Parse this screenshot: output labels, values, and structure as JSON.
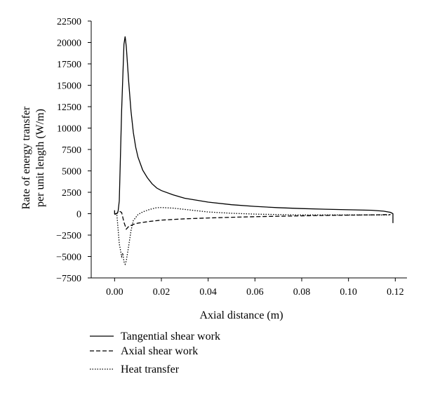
{
  "chart_data": {
    "type": "line",
    "xlabel": "Axial distance (m)",
    "ylabel_lines": [
      "Rate of energy transfer",
      "per unit length (W/m)"
    ],
    "xlim": [
      -0.01,
      0.125
    ],
    "ylim": [
      -7500,
      22500
    ],
    "x_ticks": [
      0.0,
      0.02,
      0.04,
      0.06,
      0.08,
      0.1,
      0.12
    ],
    "x_tick_labels": [
      "0.00",
      "0.02",
      "0.04",
      "0.06",
      "0.08",
      "0.10",
      "0.12"
    ],
    "y_ticks": [
      -7500,
      -5000,
      -2500,
      0,
      2500,
      5000,
      7500,
      10000,
      12500,
      15000,
      17500,
      20000,
      22500
    ],
    "y_tick_labels": [
      "−7500",
      "−5000",
      "−2500",
      "0",
      "2500",
      "5000",
      "7500",
      "10000",
      "12500",
      "15000",
      "17500",
      "20000",
      "22500"
    ],
    "grid": false,
    "legend_position": "below",
    "series": [
      {
        "name": "Tangential shear work",
        "style": "solid",
        "x": [
          0.0,
          0.0,
          0.001,
          0.0015,
          0.002,
          0.003,
          0.004,
          0.0045,
          0.005,
          0.006,
          0.007,
          0.008,
          0.009,
          0.01,
          0.012,
          0.014,
          0.016,
          0.018,
          0.02,
          0.025,
          0.03,
          0.04,
          0.05,
          0.06,
          0.07,
          0.08,
          0.09,
          0.1,
          0.11,
          0.115,
          0.118,
          0.119,
          0.119
        ],
        "y": [
          400,
          0,
          0,
          300,
          1500,
          12000,
          19800,
          20700,
          19500,
          15500,
          12000,
          9500,
          7800,
          6600,
          5100,
          4200,
          3500,
          3000,
          2700,
          2200,
          1800,
          1350,
          1050,
          850,
          700,
          600,
          520,
          460,
          400,
          300,
          150,
          0,
          -1100
        ]
      },
      {
        "name": "Axial shear work",
        "style": "dashed",
        "x": [
          0.0,
          0.001,
          0.002,
          0.003,
          0.004,
          0.005,
          0.006,
          0.008,
          0.01,
          0.015,
          0.02,
          0.03,
          0.04,
          0.05,
          0.06,
          0.07,
          0.08,
          0.09,
          0.1,
          0.11,
          0.118
        ],
        "y": [
          -100,
          50,
          300,
          150,
          -1000,
          -1800,
          -1500,
          -1250,
          -1100,
          -900,
          -750,
          -600,
          -500,
          -420,
          -350,
          -300,
          -250,
          -200,
          -170,
          -140,
          -100
        ]
      },
      {
        "name": "Heat transfer",
        "style": "dotted",
        "x": [
          0.0,
          0.001,
          0.002,
          0.003,
          0.0035,
          0.004,
          0.0045,
          0.005,
          0.006,
          0.007,
          0.008,
          0.01,
          0.012,
          0.015,
          0.018,
          0.02,
          0.025,
          0.03,
          0.035,
          0.04,
          0.05,
          0.06,
          0.07,
          0.08,
          0.1,
          0.118
        ],
        "y": [
          0,
          -200,
          -3500,
          -5000,
          -4600,
          -5600,
          -5900,
          -5500,
          -3800,
          -2000,
          -800,
          -100,
          200,
          500,
          700,
          720,
          650,
          500,
          350,
          200,
          50,
          -50,
          -100,
          -150,
          -150,
          -150
        ]
      }
    ]
  }
}
